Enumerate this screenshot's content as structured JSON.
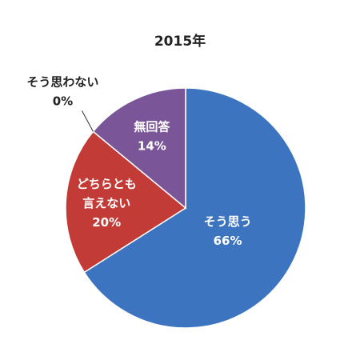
{
  "chart_data": {
    "type": "pie",
    "title": "2015年",
    "start": "12 o'clock, clockwise",
    "slices": [
      {
        "label": "そう思う",
        "label_lines": [
          "そう思う"
        ],
        "value": 66,
        "display": "66%",
        "color": "#3d74bf"
      },
      {
        "label": "どちらとも言えない",
        "label_lines": [
          "どちらとも",
          "言えない"
        ],
        "value": 20,
        "display": "20%",
        "color": "#c23b37"
      },
      {
        "label": "そう思わない",
        "label_lines": [
          "そう思わない"
        ],
        "value": 0,
        "display": "0%",
        "color": "#ffffff"
      },
      {
        "label": "無回答",
        "label_lines": [
          "無回答"
        ],
        "value": 14,
        "display": "14%",
        "color": "#7a5699"
      }
    ]
  }
}
